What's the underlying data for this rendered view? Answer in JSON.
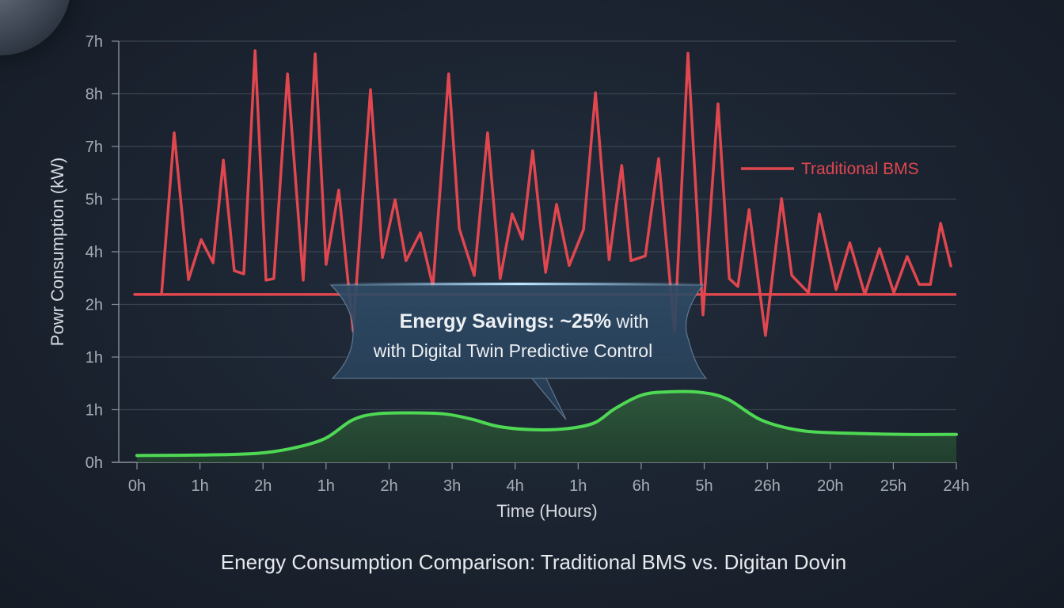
{
  "chart_data": {
    "type": "line",
    "title": "Energy Consumption Comparison: Traditional BMS vs. Digitan Dovin",
    "xlabel": "Time (Hours)",
    "ylabel": "Powr Consumption (kW)",
    "xlim": [
      0,
      24
    ],
    "ylim": [
      0,
      8
    ],
    "grid": true,
    "x_ticks": [
      {
        "pos": 0,
        "label": "0h"
      },
      {
        "pos": 1.846,
        "label": "1h"
      },
      {
        "pos": 3.692,
        "label": "2h"
      },
      {
        "pos": 5.538,
        "label": "1h"
      },
      {
        "pos": 7.385,
        "label": "2h"
      },
      {
        "pos": 9.231,
        "label": "3h"
      },
      {
        "pos": 11.077,
        "label": "4h"
      },
      {
        "pos": 12.923,
        "label": "1h"
      },
      {
        "pos": 14.769,
        "label": "6h"
      },
      {
        "pos": 16.615,
        "label": "5h"
      },
      {
        "pos": 18.462,
        "label": "26h"
      },
      {
        "pos": 20.308,
        "label": "20h"
      },
      {
        "pos": 22.154,
        "label": "25h"
      },
      {
        "pos": 24,
        "label": "24h"
      }
    ],
    "y_ticks": [
      {
        "pos": 0,
        "label": "0h"
      },
      {
        "pos": 1,
        "label": "1h"
      },
      {
        "pos": 2,
        "label": "1h"
      },
      {
        "pos": 3,
        "label": "2h"
      },
      {
        "pos": 4,
        "label": "4h"
      },
      {
        "pos": 5,
        "label": "5h"
      },
      {
        "pos": 6,
        "label": "7h"
      },
      {
        "pos": 7,
        "label": "8h"
      },
      {
        "pos": 8,
        "label": "7h"
      }
    ],
    "legend": {
      "position": "top-right",
      "entries": [
        {
          "name": "Traditional BMS",
          "color": "#e0474f"
        }
      ]
    },
    "series": [
      {
        "name": "Traditional BMS",
        "color": "#e0474f",
        "style": "jagged-line",
        "x": [
          -0.07,
          0.72,
          1.09,
          1.51,
          1.88,
          2.23,
          2.53,
          2.85,
          3.13,
          3.46,
          3.78,
          4.01,
          4.41,
          4.87,
          5.22,
          5.54,
          5.91,
          6.33,
          6.84,
          7.19,
          7.56,
          7.88,
          8.3,
          8.67,
          9.13,
          9.44,
          9.88,
          10.27,
          10.64,
          10.99,
          11.29,
          11.59,
          11.97,
          12.29,
          12.66,
          13.08,
          13.43,
          13.83,
          14.2,
          14.47,
          14.89,
          15.28,
          15.75,
          16.14,
          16.58,
          17.02,
          17.35,
          17.6,
          17.93,
          18.41,
          18.88,
          19.18,
          19.67,
          19.99,
          20.48,
          20.88,
          21.32,
          21.75,
          22.17,
          22.56,
          22.91,
          23.24,
          23.54,
          23.84
        ],
        "y": [
          3.19,
          3.19,
          6.26,
          3.47,
          4.23,
          3.79,
          5.74,
          3.64,
          3.58,
          7.82,
          3.46,
          3.49,
          7.38,
          3.46,
          7.76,
          3.76,
          5.17,
          2.5,
          7.08,
          3.89,
          4.99,
          3.83,
          4.36,
          3.34,
          7.38,
          4.44,
          3.55,
          6.26,
          3.49,
          4.72,
          4.24,
          5.92,
          3.61,
          4.9,
          3.74,
          4.42,
          7.02,
          3.85,
          5.64,
          3.83,
          3.92,
          5.77,
          2.47,
          7.77,
          2.8,
          6.81,
          3.49,
          3.34,
          4.8,
          2.41,
          5.01,
          3.55,
          3.22,
          4.72,
          3.28,
          4.17,
          3.19,
          4.06,
          3.22,
          3.91,
          3.38,
          3.38,
          4.54,
          3.73
        ]
      },
      {
        "name": "Traditional BMS baseline",
        "color": "#e0474f",
        "style": "flat-line",
        "x": [
          -0.07,
          24
        ],
        "y": [
          3.19,
          3.19
        ]
      },
      {
        "name": "Digital Twin Predictive Control",
        "color": "#4fd854",
        "style": "smooth-area",
        "x": [
          0,
          2,
          3.5,
          4.5,
          5.5,
          6.3,
          7.0,
          8.0,
          9.0,
          9.8,
          10.6,
          11.6,
          12.6,
          13.4,
          14.0,
          14.8,
          15.6,
          16.5,
          17.3,
          18.3,
          19.5,
          21,
          22.5,
          24
        ],
        "y": [
          0.13,
          0.14,
          0.17,
          0.26,
          0.45,
          0.8,
          0.92,
          0.94,
          0.92,
          0.82,
          0.68,
          0.62,
          0.64,
          0.75,
          1.02,
          1.28,
          1.34,
          1.33,
          1.2,
          0.8,
          0.6,
          0.55,
          0.53,
          0.53
        ]
      }
    ],
    "annotation": {
      "line1_bold": "Energy Savings: ~25%",
      "line1_rest": " with",
      "line2": "with Digital Twin Predictive Control"
    }
  }
}
